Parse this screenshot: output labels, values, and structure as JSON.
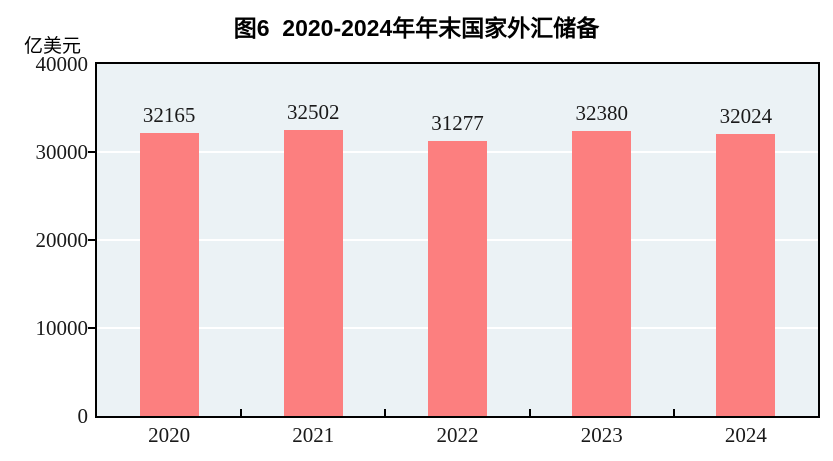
{
  "figure": {
    "title": "图6  2020-2024年年末国家外汇储备",
    "unit_label": "亿美元"
  },
  "chart_data": {
    "type": "bar",
    "title": "图6  2020-2024年年末国家外汇储备",
    "categories": [
      "2020",
      "2021",
      "2022",
      "2023",
      "2024"
    ],
    "values": [
      32165,
      32502,
      31277,
      32380,
      32024
    ],
    "xlabel": "",
    "ylabel": "亿美元",
    "ylim": [
      0,
      40000
    ],
    "yticks": [
      0,
      10000,
      20000,
      30000,
      40000
    ],
    "gridline_values": [
      10000,
      20000,
      30000
    ],
    "grid": true,
    "legend": "none",
    "data_labels": true,
    "colors": {
      "bar": "#fc7f7f",
      "plot_background": "#ebf2f5",
      "gridline": "#ffffff",
      "axis": "#000000",
      "text": "#1a1a1a"
    }
  }
}
